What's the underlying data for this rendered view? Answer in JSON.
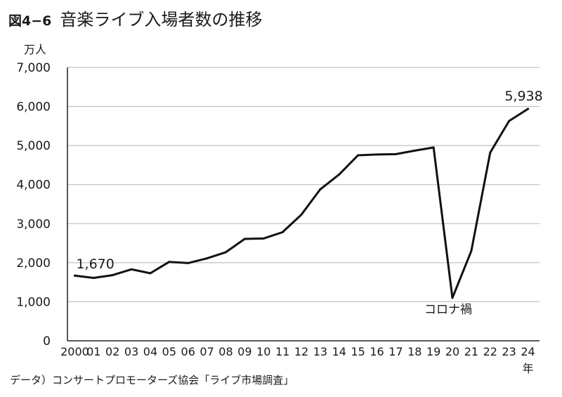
{
  "figure": {
    "number": "図4−6",
    "title": "音楽ライブ入場者数の推移",
    "source": "データ）コンサートプロモーターズ協会「ライブ市場調査」"
  },
  "chart_data": {
    "type": "line",
    "title": "音楽ライブ入場者数の推移",
    "ylabel": "万人",
    "xlabel": "年",
    "ylim": [
      0,
      7000
    ],
    "yticks": [
      0,
      1000,
      2000,
      3000,
      4000,
      5000,
      6000,
      7000
    ],
    "ytick_labels": [
      "0",
      "1,000",
      "2,000",
      "3,000",
      "4,000",
      "5,000",
      "6,000",
      "7,000"
    ],
    "categories": [
      "2000",
      "01",
      "02",
      "03",
      "04",
      "05",
      "06",
      "07",
      "08",
      "09",
      "10",
      "11",
      "12",
      "13",
      "14",
      "15",
      "16",
      "17",
      "18",
      "19",
      "20",
      "21",
      "22",
      "23",
      "24"
    ],
    "series": [
      {
        "values": [
          1670,
          1610,
          1680,
          1830,
          1730,
          2020,
          1990,
          2110,
          2270,
          2610,
          2620,
          2780,
          3230,
          3880,
          4260,
          4750,
          4770,
          4780,
          4870,
          4950,
          1100,
          2300,
          4820,
          5630,
          5938
        ]
      }
    ],
    "grid": true,
    "legend": "none",
    "annotations": [
      {
        "text": "1,670",
        "category": "2000",
        "value": 1670
      },
      {
        "text": "5,938",
        "category": "24",
        "value": 5938
      },
      {
        "text": "コロナ禍",
        "category": "20",
        "value": 1100
      }
    ],
    "colors": {
      "line": "#111111",
      "grid": "#b5b5b5",
      "axis": "#222222"
    }
  }
}
